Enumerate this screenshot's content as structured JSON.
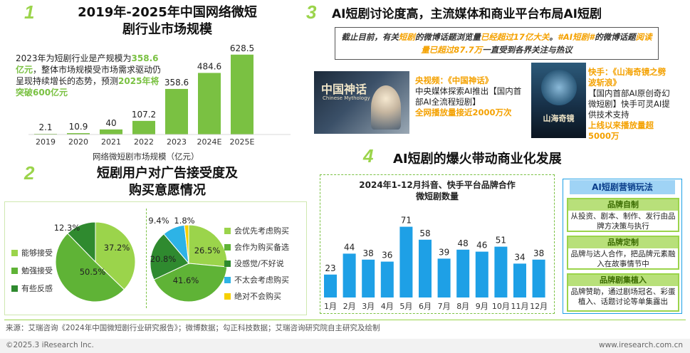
{
  "panel1": {
    "number": "1",
    "title_line1": "2019年-2025年中国网络微短",
    "title_line2": "剧行业市场规模",
    "desc_pre": "2023年为短剧行业是产规模为",
    "desc_hl1": "358.6亿元",
    "desc_mid": "，整体市场规模受市场需求驱动仍呈现持续增长的态势，预测",
    "desc_hl2": "2025年将突破600亿元",
    "caption": "网络微短剧市场规模（亿元）"
  },
  "panel2": {
    "number": "2",
    "title_line1": "短剧用户对广告接受度及",
    "title_line2": "购买意愿情况"
  },
  "panel3": {
    "number": "3",
    "title": "AI短剧讨论度高，主流媒体和商业平台布局AI短剧",
    "banner_p1": "截止目前，有关",
    "banner_h1": "短剧",
    "banner_p2": "的微博话题浏览量",
    "banner_h2": "已经超过17亿大关",
    "banner_p3": "。",
    "banner_h3": "#AI短剧#",
    "banner_p4": "的微博话题",
    "banner_h4": "阅读量已超过87.7万",
    "banner_p5": "一直受到各界关注与热议",
    "poster1_title": "中国神话",
    "poster1_sub": "Chinese Mythology",
    "poster2_title": "山海奇镜",
    "cctv_title": "央视频：《中国神话》",
    "cctv_body": "中央媒体探索AI推出【国内首部AI全流程短剧】",
    "cctv_hl": "全网播放量接近2000万次",
    "ks_title": "快手：《山海奇镜之劈波斩浪》",
    "ks_body": "【国内首部AI原创奇幻微短剧】快手可灵AI提供技术支持",
    "ks_hl": "上线以来播放量超5000万"
  },
  "panel4": {
    "number": "4",
    "title": "AI短剧的爆火带动商业化发展",
    "chart_title_l1": "2024年1-12月抖音、快手平台品牌合作",
    "chart_title_l2": "微短剧数量",
    "marketing_title": "AI短剧营销玩法",
    "cards": [
      {
        "head": "品牌自制",
        "body": "从投资、剧本、制作、发行由品牌方决策与执行"
      },
      {
        "head": "品牌定制",
        "body": "品牌与达人合作，把品牌元素融入在故事情节中"
      },
      {
        "head": "品牌剧集植入",
        "body": "品牌赞助，通过剧场冠名、彩蛋植入、话题讨论等单集露出"
      }
    ]
  },
  "footer": {
    "source": "来源：艾瑞咨询《2024年中国微短剧行业研究报告》；微博数据；勾正科技数据；艾瑞咨询研究院自主研究及绘制",
    "copyright": "©2025.3 iResearch Inc.",
    "website": "www.iresearch.com.cn"
  },
  "chart_data": [
    {
      "id": "market_size",
      "type": "bar",
      "title": "网络微短剧市场规模（亿元）",
      "categories": [
        "2019",
        "2020",
        "2021",
        "2022",
        "2023",
        "2024E",
        "2025E"
      ],
      "values": [
        2.1,
        10.9,
        40,
        107.2,
        358.6,
        484.6,
        628.5
      ],
      "labels": [
        "2.1",
        "10.9",
        "40",
        "107.2",
        "358.6",
        "484.6",
        "628.5"
      ],
      "ylim": [
        0,
        700
      ],
      "color": "#7ac142"
    },
    {
      "id": "ad_acceptance",
      "type": "pie",
      "labels": [
        "能够接受",
        "勉强接受",
        "有些反感"
      ],
      "values": [
        37.2,
        50.5,
        12.3
      ],
      "colors": [
        "#9bd44b",
        "#5fb336",
        "#2f8a2f"
      ]
    },
    {
      "id": "purchase_intent",
      "type": "pie",
      "labels": [
        "会优先考虑购买",
        "会作为购买备选",
        "没感觉/不好说",
        "不太会考虑购买",
        "绝对不会购买"
      ],
      "values": [
        26.5,
        41.6,
        20.8,
        9.4,
        1.8
      ],
      "colors": [
        "#9bd44b",
        "#5fb336",
        "#2f8a2f",
        "#2db3e6",
        "#f6d000"
      ]
    },
    {
      "id": "brand_coop",
      "type": "bar",
      "title": "2024年1-12月抖音、快手平台品牌合作微短剧数量",
      "categories": [
        "1月",
        "2月",
        "3月",
        "4月",
        "5月",
        "6月",
        "7月",
        "8月",
        "9月",
        "10月",
        "11月",
        "12月"
      ],
      "values": [
        23,
        44,
        38,
        36,
        71,
        58,
        39,
        48,
        46,
        51,
        34,
        38
      ],
      "labels": [
        "23",
        "44",
        "38",
        "36",
        "71",
        "58",
        "39",
        "48",
        "46",
        "51",
        "34",
        "38"
      ],
      "ylim": [
        0,
        80
      ],
      "color": "#1ea0e6"
    }
  ]
}
